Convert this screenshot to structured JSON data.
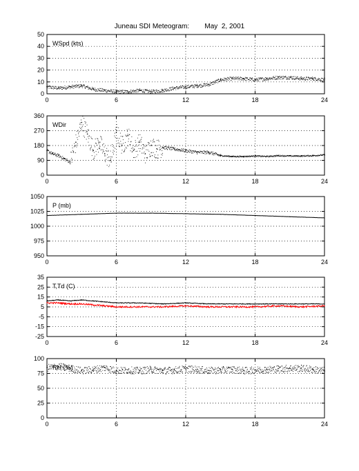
{
  "title": {
    "station": "Juneau SDI Meteogram:",
    "date": "May  2, 2001"
  },
  "chart_data": [
    {
      "type": "scatter",
      "panel": "wind-speed",
      "title": "WSpd (kts)",
      "xlim": [
        0,
        24
      ],
      "ylim": [
        0,
        50
      ],
      "xticks": [
        0,
        6,
        12,
        18,
        24
      ],
      "yticks": [
        0,
        10,
        20,
        30,
        40,
        50
      ],
      "grid": true,
      "series": [
        {
          "color": "#000000",
          "x": [
            0,
            1,
            2,
            3,
            4,
            5,
            6,
            7,
            8,
            9,
            10,
            11,
            12,
            13,
            14,
            15,
            16,
            17,
            18,
            19,
            20,
            21,
            22,
            23,
            24
          ],
          "y": [
            6,
            5,
            6,
            7,
            4,
            3,
            2,
            2,
            3,
            2,
            3,
            5,
            6,
            7,
            8,
            12,
            13,
            13,
            12,
            13,
            14,
            14,
            13,
            13,
            12
          ]
        }
      ]
    },
    {
      "type": "scatter",
      "panel": "wind-direction",
      "title": "WDir",
      "xlim": [
        0,
        24
      ],
      "ylim": [
        0,
        360
      ],
      "xticks": [
        0,
        6,
        12,
        18,
        24
      ],
      "yticks": [
        0,
        90,
        180,
        270,
        360
      ],
      "grid": true,
      "series": [
        {
          "color": "#000000",
          "x": [
            0,
            0.5,
            1,
            1.5,
            2,
            2.5,
            3,
            3.5,
            4,
            4.5,
            5,
            5.5,
            6,
            6.5,
            7,
            7.5,
            8,
            8.5,
            9,
            9.5,
            10,
            11,
            12,
            13,
            14,
            15,
            16,
            17,
            18,
            19,
            20,
            21,
            22,
            23,
            24
          ],
          "y": [
            150,
            130,
            120,
            100,
            80,
            200,
            320,
            250,
            150,
            200,
            130,
            90,
            260,
            180,
            240,
            150,
            200,
            130,
            180,
            160,
            170,
            160,
            150,
            140,
            140,
            120,
            115,
            115,
            118,
            115,
            120,
            118,
            118,
            120,
            125
          ]
        }
      ]
    },
    {
      "type": "line",
      "panel": "pressure",
      "title": "P (mb)",
      "xlim": [
        0,
        24
      ],
      "ylim": [
        950,
        1050
      ],
      "xticks": [
        0,
        6,
        12,
        18,
        24
      ],
      "yticks": [
        950,
        975,
        1000,
        1025,
        1050
      ],
      "grid": true,
      "series": [
        {
          "color": "#000000",
          "x": [
            0,
            3,
            6,
            9,
            12,
            15,
            18,
            21,
            24
          ],
          "y": [
            1018,
            1020,
            1022,
            1022,
            1021,
            1020,
            1018,
            1016,
            1014
          ]
        }
      ]
    },
    {
      "type": "line",
      "panel": "temperature-dewpoint",
      "title": "T,Td (C)",
      "xlim": [
        0,
        24
      ],
      "ylim": [
        -25,
        35
      ],
      "xticks": [
        0,
        6,
        12,
        18,
        24
      ],
      "yticks": [
        -25,
        -15,
        -5,
        5,
        15,
        25,
        35
      ],
      "grid": true,
      "series": [
        {
          "color": "#000000",
          "x": [
            0,
            1,
            2,
            3,
            4,
            5,
            6,
            8,
            10,
            12,
            14,
            16,
            18,
            20,
            22,
            24
          ],
          "y": [
            11,
            12,
            11,
            12,
            11,
            10,
            9,
            9,
            8,
            9,
            8,
            8,
            8,
            8,
            8,
            8
          ]
        },
        {
          "color": "#ff0000",
          "x": [
            0,
            1,
            2,
            3,
            4,
            5,
            6,
            8,
            10,
            12,
            14,
            16,
            18,
            20,
            22,
            24
          ],
          "y": [
            9,
            9,
            8,
            8,
            7,
            6,
            5,
            5,
            5,
            6,
            5,
            5,
            5,
            6,
            5,
            6
          ]
        }
      ]
    },
    {
      "type": "scatter",
      "panel": "relative-humidity",
      "title": "RH (%)",
      "xlim": [
        0,
        24
      ],
      "ylim": [
        0,
        100
      ],
      "xticks": [
        0,
        6,
        12,
        18,
        24
      ],
      "yticks": [
        0,
        25,
        50,
        75,
        100
      ],
      "grid": true,
      "series": [
        {
          "color": "#000000",
          "x": [
            0,
            1,
            2,
            3,
            4,
            5,
            6,
            7,
            8,
            9,
            10,
            11,
            12,
            13,
            14,
            15,
            16,
            17,
            18,
            19,
            20,
            21,
            22,
            23,
            24
          ],
          "y": [
            85,
            87,
            84,
            80,
            82,
            85,
            80,
            81,
            80,
            82,
            80,
            81,
            83,
            82,
            80,
            81,
            82,
            80,
            81,
            82,
            83,
            84,
            84,
            82,
            80
          ]
        }
      ]
    }
  ]
}
